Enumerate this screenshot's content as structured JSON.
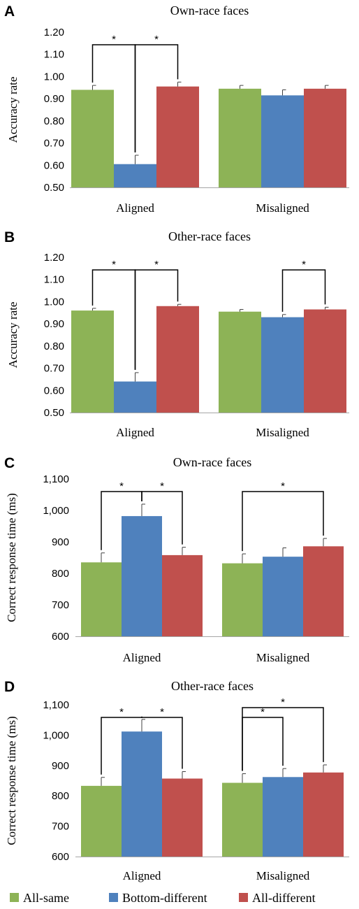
{
  "colors": {
    "All-same": "#8DB356",
    "Bottom-different": "#4F81BD",
    "All-different": "#C0504D"
  },
  "legend": [
    {
      "label": "All-same",
      "color": "#8DB356"
    },
    {
      "label": "Bottom-different",
      "color": "#4F81BD"
    },
    {
      "label": "All-different",
      "color": "#C0504D"
    }
  ],
  "chart_data": [
    {
      "panel": "A",
      "title": "Own-race faces",
      "type": "bar",
      "ylabel": "Accuracy rate",
      "ylim": [
        0.5,
        1.2
      ],
      "yticks": [
        "0.50",
        "0.60",
        "0.70",
        "0.80",
        "0.90",
        "1.00",
        "1.10",
        "1.20"
      ],
      "categories": [
        "Aligned",
        "Misaligned"
      ],
      "series": [
        {
          "name": "All-same",
          "values": [
            0.94,
            0.945
          ],
          "errors": [
            0.02,
            0.015
          ]
        },
        {
          "name": "Bottom-different",
          "values": [
            0.605,
            0.915
          ],
          "errors": [
            0.04,
            0.025
          ]
        },
        {
          "name": "All-different",
          "values": [
            0.955,
            0.945
          ],
          "errors": [
            0.02,
            0.015
          ]
        }
      ],
      "significance": [
        {
          "category": 0,
          "from": 0,
          "to": 1,
          "label": "*"
        },
        {
          "category": 0,
          "from": 1,
          "to": 2,
          "label": "*"
        }
      ]
    },
    {
      "panel": "B",
      "title": "Other-race faces",
      "type": "bar",
      "ylabel": "Accuracy rate",
      "ylim": [
        0.5,
        1.2
      ],
      "yticks": [
        "0.50",
        "0.60",
        "0.70",
        "0.80",
        "0.90",
        "1.00",
        "1.10",
        "1.20"
      ],
      "categories": [
        "Aligned",
        "Misaligned"
      ],
      "series": [
        {
          "name": "All-same",
          "values": [
            0.96,
            0.955
          ],
          "errors": [
            0.01,
            0.01
          ]
        },
        {
          "name": "Bottom-different",
          "values": [
            0.64,
            0.93
          ],
          "errors": [
            0.04,
            0.012
          ]
        },
        {
          "name": "All-different",
          "values": [
            0.98,
            0.965
          ],
          "errors": [
            0.008,
            0.01
          ]
        }
      ],
      "significance": [
        {
          "category": 0,
          "from": 0,
          "to": 1,
          "label": "*"
        },
        {
          "category": 0,
          "from": 1,
          "to": 2,
          "label": "*"
        },
        {
          "category": 1,
          "from": 1,
          "to": 2,
          "label": "*"
        }
      ]
    },
    {
      "panel": "C",
      "title": "Own-race faces",
      "type": "bar",
      "ylabel": "Correct response time (ms)",
      "ylim": [
        600,
        1100
      ],
      "yticks": [
        "600",
        "700",
        "800",
        "900",
        "1,000",
        "1,100"
      ],
      "categories": [
        "Aligned",
        "Misaligned"
      ],
      "series": [
        {
          "name": "All-same",
          "values": [
            835,
            832
          ],
          "errors": [
            30,
            30
          ]
        },
        {
          "name": "Bottom-different",
          "values": [
            982,
            853
          ],
          "errors": [
            38,
            28
          ]
        },
        {
          "name": "All-different",
          "values": [
            858,
            886
          ],
          "errors": [
            25,
            25
          ]
        }
      ],
      "significance": [
        {
          "category": 0,
          "from": 0,
          "to": 1,
          "label": "*"
        },
        {
          "category": 0,
          "from": 1,
          "to": 2,
          "label": "*"
        },
        {
          "category": 1,
          "from": 0,
          "to": 2,
          "label": "*"
        }
      ]
    },
    {
      "panel": "D",
      "title": "Other-race faces",
      "type": "bar",
      "ylabel": "Correct response time (ms)",
      "ylim": [
        600,
        1100
      ],
      "yticks": [
        "600",
        "700",
        "800",
        "900",
        "1,000",
        "1,100"
      ],
      "categories": [
        "Aligned",
        "Misaligned"
      ],
      "series": [
        {
          "name": "All-same",
          "values": [
            833,
            843
          ],
          "errors": [
            28,
            30
          ]
        },
        {
          "name": "Bottom-different",
          "values": [
            1012,
            862
          ],
          "errors": [
            40,
            28
          ]
        },
        {
          "name": "All-different",
          "values": [
            857,
            877
          ],
          "errors": [
            23,
            25
          ]
        }
      ],
      "significance": [
        {
          "category": 0,
          "from": 0,
          "to": 1,
          "label": "*"
        },
        {
          "category": 0,
          "from": 1,
          "to": 2,
          "label": "*"
        },
        {
          "category": 1,
          "from": 0,
          "to": 1,
          "label": "*"
        },
        {
          "category": 1,
          "from": 0,
          "to": 2,
          "label": "*"
        }
      ]
    }
  ]
}
